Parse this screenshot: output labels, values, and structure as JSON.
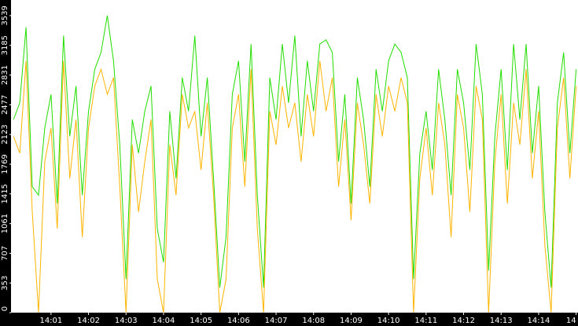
{
  "chart_data": {
    "type": "line",
    "x": [
      0,
      10,
      20,
      30,
      40,
      50,
      60,
      70,
      80,
      90,
      100,
      110,
      120,
      130,
      140,
      150,
      160,
      170,
      180,
      190,
      200,
      210,
      220,
      230,
      240,
      250,
      260,
      270,
      280,
      290,
      300,
      310,
      320,
      330,
      340,
      350,
      360,
      370,
      380,
      390,
      400,
      410,
      420,
      430,
      440,
      450,
      460,
      470,
      480,
      490,
      500,
      510,
      520,
      530,
      540,
      550,
      560,
      570,
      580,
      590,
      600,
      610,
      620,
      630,
      640,
      650,
      660,
      670,
      680,
      690,
      700,
      710,
      720,
      730,
      740,
      750,
      760,
      770,
      780,
      790,
      800,
      810,
      820,
      830,
      840,
      850,
      860,
      870,
      880,
      890,
      900
    ],
    "xlim": [
      -4,
      903
    ],
    "xticks": [
      {
        "value": 60,
        "label": "14:01"
      },
      {
        "value": 120,
        "label": "14:02"
      },
      {
        "value": 180,
        "label": "14:03"
      },
      {
        "value": 240,
        "label": "14:04"
      },
      {
        "value": 300,
        "label": "14:05"
      },
      {
        "value": 360,
        "label": "14:06"
      },
      {
        "value": 420,
        "label": "14:07"
      },
      {
        "value": 480,
        "label": "14:08"
      },
      {
        "value": 540,
        "label": "14:09"
      },
      {
        "value": 600,
        "label": "14:10"
      },
      {
        "value": 660,
        "label": "14:11"
      },
      {
        "value": 720,
        "label": "14:12"
      },
      {
        "value": 780,
        "label": "14:13"
      },
      {
        "value": 840,
        "label": "14:14"
      },
      {
        "value": 900,
        "label": "14"
      }
    ],
    "ylim": [
      0,
      3725
    ],
    "yticks": [
      0,
      353,
      707,
      1061,
      1415,
      1769,
      2123,
      2477,
      2831,
      3185,
      3539
    ],
    "series": [
      {
        "color": "#22dd00",
        "values": [
          2300,
          2500,
          3400,
          1500,
          1400,
          2200,
          2600,
          1300,
          3300,
          2100,
          2700,
          1400,
          2400,
          2900,
          3100,
          3539,
          3000,
          2000,
          400,
          2300,
          1900,
          2400,
          2700,
          1000,
          600,
          2400,
          1600,
          2800,
          2400,
          3300,
          2100,
          2800,
          1600,
          300,
          900,
          2600,
          3000,
          1800,
          3200,
          1400,
          300,
          2800,
          2300,
          3200,
          2500,
          3300,
          2100,
          3000,
          2400,
          3200,
          3250,
          3100,
          1800,
          2600,
          1300,
          2800,
          2300,
          1500,
          2900,
          2400,
          3000,
          3200,
          3100,
          2800,
          400,
          1900,
          2400,
          1700,
          2900,
          2300,
          1400,
          2900,
          2500,
          1700,
          3200,
          2600,
          500,
          2100,
          2900,
          1700,
          3200,
          2300,
          3200,
          1900,
          2700,
          1200,
          300,
          2500,
          3100,
          1900,
          2900
        ]
      },
      {
        "color": "#ffb400",
        "values": [
          2100,
          1900,
          3000,
          1200,
          0,
          1800,
          2200,
          1000,
          3000,
          1600,
          2300,
          900,
          2200,
          2700,
          2900,
          2600,
          2800,
          1500,
          0,
          2000,
          1200,
          1800,
          2300,
          400,
          0,
          2000,
          1400,
          2600,
          2200,
          2400,
          1700,
          2500,
          1400,
          0,
          400,
          2200,
          2600,
          1500,
          2900,
          1000,
          0,
          2400,
          2000,
          2700,
          2200,
          2500,
          1800,
          2600,
          2100,
          3000,
          2400,
          2800,
          1500,
          2300,
          1100,
          2500,
          2000,
          1300,
          2600,
          2100,
          2700,
          2400,
          2800,
          2500,
          0,
          1600,
          2200,
          1400,
          2500,
          2000,
          900,
          2600,
          2200,
          1200,
          2700,
          2300,
          0,
          1800,
          2600,
          1300,
          2500,
          2000,
          2900,
          1600,
          2400,
          800,
          0,
          2200,
          2800,
          1600,
          2700
        ]
      }
    ]
  }
}
